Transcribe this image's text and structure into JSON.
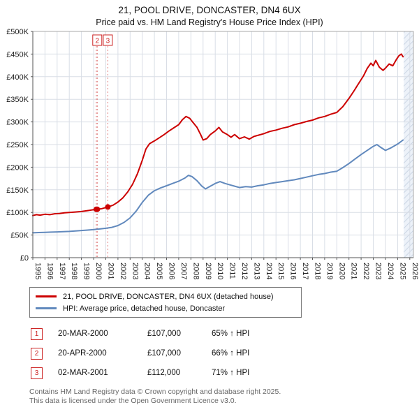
{
  "title": "21, POOL DRIVE, DONCASTER, DN4 6UX",
  "subtitle": "Price paid vs. HM Land Registry's House Price Index (HPI)",
  "chart_data": {
    "type": "line",
    "x_range": [
      1995,
      2026.3
    ],
    "ylim": [
      0,
      500000
    ],
    "x_ticks": [
      1995,
      1996,
      1997,
      1998,
      1999,
      2000,
      2001,
      2002,
      2003,
      2004,
      2005,
      2006,
      2007,
      2008,
      2009,
      2010,
      2011,
      2012,
      2013,
      2014,
      2015,
      2016,
      2017,
      2018,
      2019,
      2020,
      2021,
      2022,
      2023,
      2024,
      2025,
      2026
    ],
    "y_ticks": [
      0,
      50000,
      100000,
      150000,
      200000,
      250000,
      300000,
      350000,
      400000,
      450000,
      500000
    ],
    "y_tick_labels": [
      "£0",
      "£50K",
      "£100K",
      "£150K",
      "£200K",
      "£250K",
      "£300K",
      "£350K",
      "£400K",
      "£450K",
      "£500K"
    ],
    "grid": true,
    "legend_position": "below",
    "hatch_from": 2025.5,
    "series": [
      {
        "name": "21, POOL DRIVE, DONCASTER, DN4 6UX (detached house)",
        "color": "#cc0000",
        "x": [
          1995.0,
          1995.3,
          1995.6,
          1996.0,
          1996.4,
          1996.8,
          1997.2,
          1997.6,
          1998.0,
          1998.5,
          1999.0,
          1999.5,
          2000.0,
          2000.3,
          2000.7,
          2001.17,
          2001.6,
          2002.0,
          2002.4,
          2002.8,
          2003.2,
          2003.6,
          2004.0,
          2004.3,
          2004.6,
          2005.0,
          2005.4,
          2005.8,
          2006.2,
          2006.6,
          2007.0,
          2007.3,
          2007.6,
          2007.9,
          2008.2,
          2008.5,
          2008.8,
          2009.0,
          2009.3,
          2009.6,
          2010.0,
          2010.3,
          2010.6,
          2011.0,
          2011.3,
          2011.6,
          2012.0,
          2012.4,
          2012.8,
          2013.2,
          2013.6,
          2014.0,
          2014.5,
          2015.0,
          2015.5,
          2016.0,
          2016.5,
          2017.0,
          2017.5,
          2018.0,
          2018.5,
          2019.0,
          2019.5,
          2020.0,
          2020.5,
          2021.0,
          2021.4,
          2021.8,
          2022.2,
          2022.5,
          2022.8,
          2023.0,
          2023.2,
          2023.5,
          2023.8,
          2024.0,
          2024.3,
          2024.6,
          2024.9,
          2025.1,
          2025.3,
          2025.45
        ],
        "values": [
          93000,
          95000,
          94000,
          96000,
          95000,
          97000,
          97500,
          99000,
          100000,
          101000,
          102000,
          104000,
          106000,
          107000,
          108500,
          112000,
          116000,
          123000,
          132000,
          145000,
          162000,
          185000,
          215000,
          240000,
          252000,
          258000,
          265000,
          272000,
          280000,
          287000,
          294000,
          305000,
          312000,
          308000,
          298000,
          288000,
          272000,
          260000,
          263000,
          272000,
          280000,
          288000,
          278000,
          272000,
          266000,
          272000,
          263000,
          267000,
          262000,
          268000,
          271000,
          274000,
          279000,
          282000,
          286000,
          289000,
          294000,
          297000,
          301000,
          304000,
          309000,
          312000,
          317000,
          321000,
          334000,
          352000,
          368000,
          385000,
          402000,
          418000,
          430000,
          424000,
          436000,
          421000,
          414000,
          419000,
          428000,
          424000,
          438000,
          446000,
          450000,
          444000
        ]
      },
      {
        "name": "HPI: Average price, detached house, Doncaster",
        "color": "#6189bd",
        "x": [
          1995.0,
          1995.5,
          1996.0,
          1996.5,
          1997.0,
          1997.5,
          1998.0,
          1998.5,
          1999.0,
          1999.5,
          2000.0,
          2000.5,
          2001.0,
          2001.5,
          2002.0,
          2002.5,
          2003.0,
          2003.5,
          2004.0,
          2004.5,
          2005.0,
          2005.5,
          2006.0,
          2006.5,
          2007.0,
          2007.5,
          2007.8,
          2008.1,
          2008.5,
          2008.9,
          2009.2,
          2009.6,
          2010.0,
          2010.4,
          2010.8,
          2011.2,
          2011.6,
          2012.0,
          2012.5,
          2013.0,
          2013.5,
          2014.0,
          2014.5,
          2015.0,
          2015.5,
          2016.0,
          2016.5,
          2017.0,
          2017.5,
          2018.0,
          2018.5,
          2019.0,
          2019.5,
          2020.0,
          2020.5,
          2021.0,
          2021.5,
          2022.0,
          2022.5,
          2023.0,
          2023.3,
          2023.6,
          2024.0,
          2024.4,
          2024.8,
          2025.1,
          2025.45
        ],
        "values": [
          55000,
          55500,
          56000,
          56500,
          57000,
          57500,
          58000,
          59000,
          60000,
          61000,
          62000,
          63500,
          65000,
          67000,
          71000,
          78000,
          88000,
          103000,
          122000,
          138000,
          148000,
          154000,
          159000,
          164000,
          169000,
          176000,
          182000,
          179000,
          170000,
          158000,
          152000,
          158000,
          164000,
          168000,
          164000,
          161000,
          158000,
          155000,
          157000,
          156000,
          159000,
          161000,
          164000,
          166000,
          168000,
          170000,
          172000,
          175000,
          178000,
          181000,
          184000,
          186000,
          189000,
          191000,
          199000,
          208000,
          218000,
          228000,
          237000,
          246000,
          250000,
          244000,
          237000,
          242000,
          248000,
          253000,
          260000
        ]
      }
    ],
    "markers": [
      {
        "label": "1",
        "x": 2000.22,
        "y": 107000
      },
      {
        "label": "2",
        "x": 2000.3,
        "y": 107000
      },
      {
        "label": "3",
        "x": 2001.17,
        "y": 112000
      }
    ],
    "flags": [
      {
        "label": "2",
        "x": 2000.3
      },
      {
        "label": "3",
        "x": 2001.17
      }
    ]
  },
  "legend": {
    "items": [
      {
        "label": "21, POOL DRIVE, DONCASTER, DN4 6UX (detached house)",
        "color": "#cc0000"
      },
      {
        "label": "HPI: Average price, detached house, Doncaster",
        "color": "#6189bd"
      }
    ]
  },
  "transactions": [
    {
      "num": "1",
      "date": "20-MAR-2000",
      "price": "£107,000",
      "hpi": "65% ↑ HPI"
    },
    {
      "num": "2",
      "date": "20-APR-2000",
      "price": "£107,000",
      "hpi": "66% ↑ HPI"
    },
    {
      "num": "3",
      "date": "02-MAR-2001",
      "price": "£112,000",
      "hpi": "71% ↑ HPI"
    }
  ],
  "footer": {
    "line1": "Contains HM Land Registry data © Crown copyright and database right 2025.",
    "line2": "This data is licensed under the Open Government Licence v3.0."
  }
}
